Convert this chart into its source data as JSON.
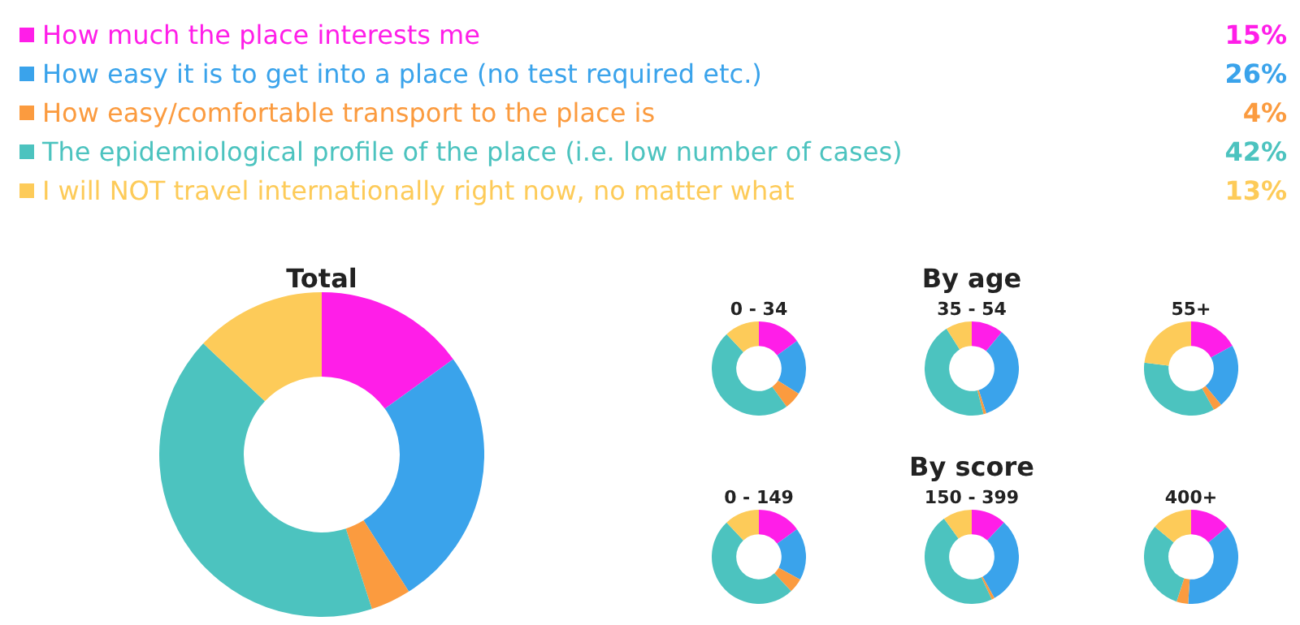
{
  "chart_data": [
    {
      "type": "donut",
      "title": "Total",
      "legend": "top",
      "categories": [
        "How much the place interests me",
        "How easy it is to get into a place (no test required etc.)",
        "How easy/comfortable transport to the place is",
        "The epidemiological profile of the place (i.e. low number of cases)",
        "I will NOT travel internationally right now, no matter what"
      ],
      "values": [
        15,
        26,
        4,
        42,
        13
      ],
      "value_labels": [
        "15%",
        "26%",
        "4%",
        "42%",
        "13%"
      ],
      "colors": [
        "#ff1ee8",
        "#3aa3eb",
        "#fb9b3f",
        "#4cc3bf",
        "#fdcb59"
      ]
    },
    {
      "type": "donut",
      "title": "0 - 34",
      "categories": [
        null,
        null,
        null,
        null,
        null
      ],
      "values": [
        15,
        19,
        6,
        48,
        12
      ],
      "colors": [
        "#ff1ee8",
        "#3aa3eb",
        "#fb9b3f",
        "#4cc3bf",
        "#fdcb59"
      ]
    },
    {
      "type": "donut",
      "title": "35 - 54",
      "subtitle": "By age",
      "categories": [
        null,
        null,
        null,
        null,
        null
      ],
      "values": [
        11,
        34,
        1,
        45,
        9
      ],
      "colors": [
        "#ff1ee8",
        "#3aa3eb",
        "#fb9b3f",
        "#4cc3bf",
        "#fdcb59"
      ]
    },
    {
      "type": "donut",
      "title": "55+",
      "categories": [
        null,
        null,
        null,
        null,
        null
      ],
      "values": [
        17,
        22,
        3,
        35,
        23
      ],
      "colors": [
        "#ff1ee8",
        "#3aa3eb",
        "#fb9b3f",
        "#4cc3bf",
        "#fdcb59"
      ]
    },
    {
      "type": "donut",
      "title": "0 - 149",
      "categories": [
        null,
        null,
        null,
        null,
        null
      ],
      "values": [
        15,
        18,
        5,
        50,
        12
      ],
      "colors": [
        "#ff1ee8",
        "#3aa3eb",
        "#fb9b3f",
        "#4cc3bf",
        "#fdcb59"
      ]
    },
    {
      "type": "donut",
      "title": "150 - 399",
      "subtitle": "By score",
      "categories": [
        null,
        null,
        null,
        null,
        null
      ],
      "values": [
        12,
        30,
        1,
        47,
        10
      ],
      "colors": [
        "#ff1ee8",
        "#3aa3eb",
        "#fb9b3f",
        "#4cc3bf",
        "#fdcb59"
      ]
    },
    {
      "type": "donut",
      "title": "400+",
      "categories": [
        null,
        null,
        null,
        null,
        null
      ],
      "values": [
        14,
        37,
        4,
        31,
        14
      ],
      "colors": [
        "#ff1ee8",
        "#3aa3eb",
        "#fb9b3f",
        "#4cc3bf",
        "#fdcb59"
      ]
    }
  ]
}
